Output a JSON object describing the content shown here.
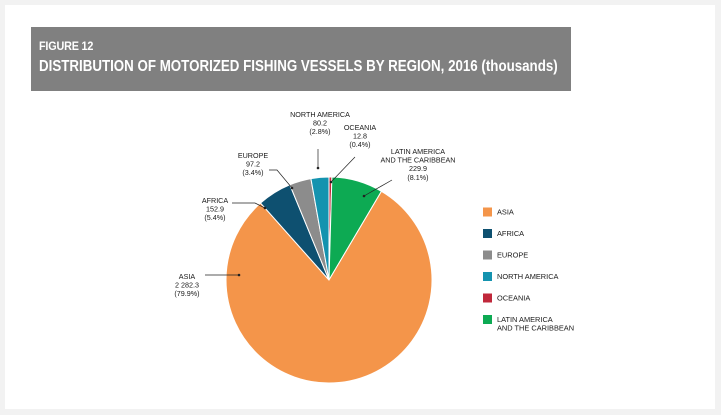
{
  "figure": {
    "number": "FIGURE 12",
    "title": "DISTRIBUTION OF MOTORIZED FISHING VESSELS BY REGION, 2016 (thousands)"
  },
  "chart_data": {
    "type": "pie",
    "title": "DISTRIBUTION OF MOTORIZED FISHING VESSELS BY REGION, 2016 (thousands)",
    "legend_position": "right",
    "slices": [
      {
        "key": "asia",
        "legend": [
          "ASIA"
        ],
        "label": [
          "ASIA"
        ],
        "value": 2282.3,
        "value_text": "2 282.3",
        "percent_text": "(79.9%)",
        "color": "#F4954A"
      },
      {
        "key": "africa",
        "legend": [
          "AFRICA"
        ],
        "label": [
          "AFRICA"
        ],
        "value": 152.9,
        "value_text": "152.9",
        "percent_text": "(5.4%)",
        "color": "#0E5070"
      },
      {
        "key": "europe",
        "legend": [
          "EUROPE"
        ],
        "label": [
          "EUROPE"
        ],
        "value": 97.2,
        "value_text": "97.2",
        "percent_text": "(3.4%)",
        "color": "#8C8C8C"
      },
      {
        "key": "north-america",
        "legend": [
          "NORTH AMERICA"
        ],
        "label": [
          "NORTH AMERICA"
        ],
        "value": 80.2,
        "value_text": "80.2",
        "percent_text": "(2.8%)",
        "color": "#1493AF"
      },
      {
        "key": "oceania",
        "legend": [
          "OCEANIA"
        ],
        "label": [
          "OCEANIA"
        ],
        "value": 12.8,
        "value_text": "12.8",
        "percent_text": "(0.4%)",
        "color": "#C0283B"
      },
      {
        "key": "latin-america",
        "legend": [
          "LATIN AMERICA",
          "AND THE CARIBBEAN"
        ],
        "label": [
          "LATIN AMERICA",
          "AND THE CARIBBEAN"
        ],
        "value": 229.9,
        "value_text": "229.9",
        "percent_text": "(8.1%)",
        "color": "#0DAA53"
      }
    ]
  }
}
